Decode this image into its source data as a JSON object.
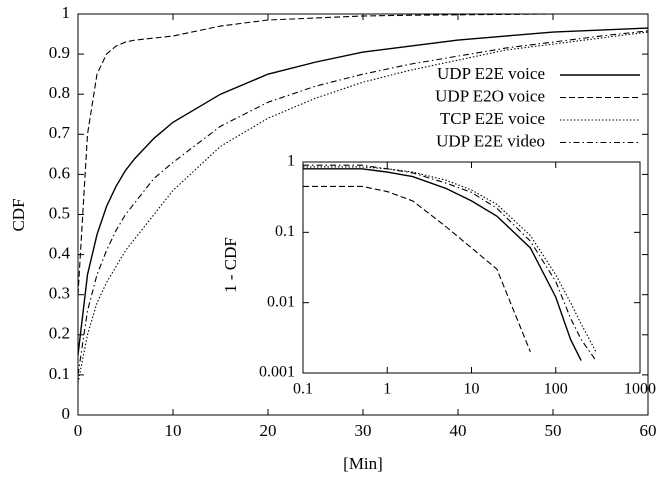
{
  "chart_data": [
    {
      "type": "line",
      "xlabel": "[Min]",
      "ylabel": "CDF",
      "x": [
        0,
        1,
        2,
        3,
        4,
        5,
        6,
        8,
        10,
        15,
        20,
        25,
        30,
        35,
        40,
        45,
        50,
        55,
        60
      ],
      "series": [
        {
          "name": "UDP E2E voice",
          "color": "#000000",
          "style": "solid",
          "values": [
            0.15,
            0.35,
            0.45,
            0.52,
            0.57,
            0.61,
            0.64,
            0.69,
            0.73,
            0.8,
            0.85,
            0.88,
            0.905,
            0.92,
            0.935,
            0.945,
            0.955,
            0.96,
            0.965
          ]
        },
        {
          "name": "UDP E2O voice",
          "color": "#000000",
          "style": "dashed",
          "values": [
            0.3,
            0.7,
            0.85,
            0.9,
            0.92,
            0.93,
            0.935,
            0.94,
            0.945,
            0.97,
            0.985,
            0.99,
            0.995,
            0.997,
            0.998,
            0.999,
            1,
            1,
            1
          ]
        },
        {
          "name": "TCP E2E voice",
          "color": "#000000",
          "style": "dotted",
          "values": [
            0.08,
            0.2,
            0.28,
            0.33,
            0.37,
            0.41,
            0.44,
            0.5,
            0.56,
            0.67,
            0.74,
            0.79,
            0.83,
            0.86,
            0.885,
            0.91,
            0.925,
            0.94,
            0.955
          ]
        },
        {
          "name": "UDP E2E video",
          "color": "#000000",
          "style": "dashdot",
          "values": [
            0.1,
            0.26,
            0.35,
            0.41,
            0.46,
            0.5,
            0.53,
            0.59,
            0.63,
            0.72,
            0.78,
            0.82,
            0.85,
            0.875,
            0.895,
            0.915,
            0.93,
            0.945,
            0.958
          ]
        }
      ],
      "xlim": [
        0,
        60
      ],
      "xticks": [
        0,
        10,
        20,
        30,
        40,
        50,
        60
      ],
      "ylim": [
        0,
        1
      ],
      "yticks": [
        0,
        0.1,
        0.2,
        0.3,
        0.4,
        0.5,
        0.6,
        0.7,
        0.8,
        0.9,
        1
      ],
      "grid": false,
      "legend": "upper right"
    },
    {
      "type": "line",
      "ylabel": "1 - CDF",
      "xscale": "log",
      "yscale": "log",
      "x": [
        0.1,
        0.5,
        1,
        2,
        5,
        10,
        20,
        50,
        100,
        150,
        200,
        300
      ],
      "series": [
        {
          "color": "#000000",
          "style": "solid",
          "values": [
            0.8,
            0.8,
            0.72,
            0.62,
            0.42,
            0.28,
            0.17,
            0.06,
            0.012,
            0.003,
            0.0015,
            null
          ]
        },
        {
          "color": "#000000",
          "style": "dashed",
          "values": [
            0.45,
            0.45,
            0.38,
            0.28,
            0.12,
            0.06,
            0.03,
            0.002,
            null,
            null,
            null,
            null
          ]
        },
        {
          "color": "#000000",
          "style": "dotted",
          "values": [
            0.85,
            0.85,
            0.8,
            0.72,
            0.55,
            0.4,
            0.25,
            0.09,
            0.025,
            0.01,
            0.005,
            0.002
          ]
        },
        {
          "color": "#000000",
          "style": "dashdot",
          "values": [
            0.9,
            0.9,
            0.8,
            0.7,
            0.5,
            0.37,
            0.22,
            0.075,
            0.02,
            0.006,
            0.003,
            0.0015
          ]
        }
      ],
      "xlim": [
        0.1,
        1000
      ],
      "xticks": [
        0.1,
        1,
        10,
        100,
        1000
      ],
      "ylim": [
        0.001,
        1
      ],
      "yticks": [
        0.001,
        0.01,
        0.1,
        1
      ],
      "grid": false
    }
  ]
}
